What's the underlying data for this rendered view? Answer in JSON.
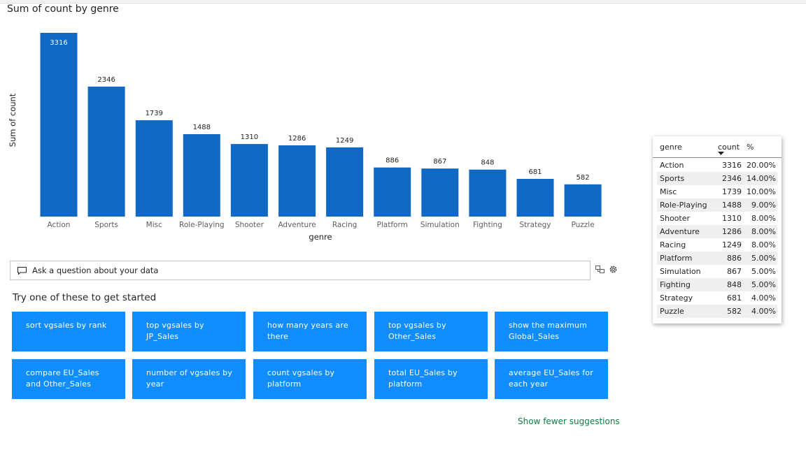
{
  "chart_title": "Sum of count by genre",
  "chart_data": {
    "type": "bar",
    "title": "Sum of count by genre",
    "xlabel": "genre",
    "ylabel": "Sum of count",
    "categories": [
      "Action",
      "Sports",
      "Misc",
      "Role-Playing",
      "Shooter",
      "Adventure",
      "Racing",
      "Platform",
      "Simulation",
      "Fighting",
      "Strategy",
      "Puzzle"
    ],
    "values": [
      3316,
      2346,
      1739,
      1488,
      1310,
      1286,
      1249,
      886,
      867,
      848,
      681,
      582
    ],
    "ylim": [
      0,
      3316
    ],
    "color": "#1069c4",
    "grid": false
  },
  "qa": {
    "placeholder": "Ask a question about your data",
    "icons": [
      "chat-icon",
      "convert-to-visual-icon",
      "settings-gear-icon"
    ]
  },
  "try_label": "Try one of these to get started",
  "suggestions": [
    "sort vgsales by rank",
    "top vgsales by JP_Sales",
    "how many years are there",
    "top vgsales by Other_Sales",
    "show the maximum Global_Sales",
    "compare EU_Sales and Other_Sales",
    "number of vgsales by year",
    "count vgsales by platform",
    "total EU_Sales by platform",
    "average EU_Sales for each year"
  ],
  "suggestion_color": "#118dff",
  "show_fewer": "Show fewer suggestions",
  "table": {
    "headers": {
      "genre": "genre",
      "count": "count",
      "pct": "%"
    },
    "sort_icon": "sort-descending-icon",
    "rows": [
      {
        "genre": "Action",
        "count": "3316",
        "pct": "20.00%"
      },
      {
        "genre": "Sports",
        "count": "2346",
        "pct": "14.00%"
      },
      {
        "genre": "Misc",
        "count": "1739",
        "pct": "10.00%"
      },
      {
        "genre": "Role-Playing",
        "count": "1488",
        "pct": "9.00%"
      },
      {
        "genre": "Shooter",
        "count": "1310",
        "pct": "8.00%"
      },
      {
        "genre": "Adventure",
        "count": "1286",
        "pct": "8.00%"
      },
      {
        "genre": "Racing",
        "count": "1249",
        "pct": "8.00%"
      },
      {
        "genre": "Platform",
        "count": "886",
        "pct": "5.00%"
      },
      {
        "genre": "Simulation",
        "count": "867",
        "pct": "5.00%"
      },
      {
        "genre": "Fighting",
        "count": "848",
        "pct": "5.00%"
      },
      {
        "genre": "Strategy",
        "count": "681",
        "pct": "4.00%"
      },
      {
        "genre": "Puzzle",
        "count": "582",
        "pct": "4.00%"
      }
    ]
  }
}
